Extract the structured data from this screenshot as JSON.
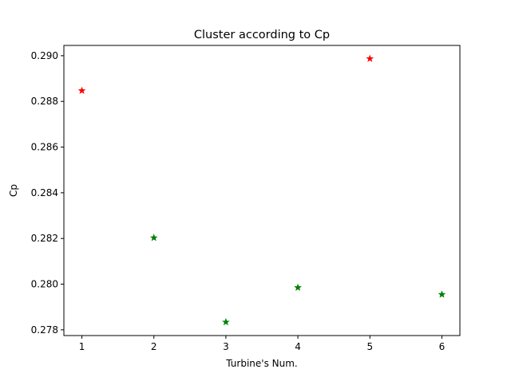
{
  "chart_data": {
    "type": "scatter",
    "title": "Cluster according to Cp",
    "xlabel": "Turbine's Num.",
    "ylabel": "Cp",
    "xlim": [
      0.75,
      6.25
    ],
    "ylim": [
      0.27775,
      0.29045
    ],
    "xticks": [
      1,
      2,
      3,
      4,
      5,
      6
    ],
    "yticks": [
      0.278,
      0.28,
      0.282,
      0.284,
      0.286,
      0.288,
      0.29
    ],
    "ytick_labels": [
      "0.278",
      "0.280",
      "0.282",
      "0.284",
      "0.286",
      "0.288",
      "0.290"
    ],
    "grid": false,
    "marker": "star",
    "points": [
      {
        "x": 1,
        "y": 0.28847,
        "color": "#ff0000"
      },
      {
        "x": 2,
        "y": 0.28203,
        "color": "#008000"
      },
      {
        "x": 3,
        "y": 0.27834,
        "color": "#008000"
      },
      {
        "x": 4,
        "y": 0.27985,
        "color": "#008000"
      },
      {
        "x": 5,
        "y": 0.28987,
        "color": "#ff0000"
      },
      {
        "x": 6,
        "y": 0.27955,
        "color": "#008000"
      }
    ]
  }
}
